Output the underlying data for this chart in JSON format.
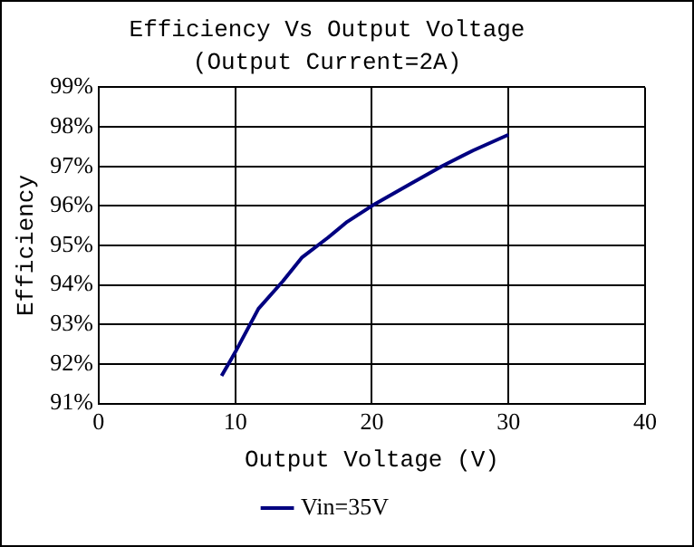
{
  "chart_data": {
    "type": "line",
    "title": "Efficiency Vs Output Voltage",
    "subtitle": "(Output Current=2A)",
    "xlabel": "Output Voltage (V)",
    "ylabel": "Efficiency",
    "series": [
      {
        "name": "Vin=35V",
        "color": "#000080",
        "x": [
          9.0,
          10.0,
          11.7,
          13.5,
          14.9,
          16.8,
          18.2,
          20.0,
          22.8,
          25.1,
          27.4,
          30.0
        ],
        "values": [
          91.7,
          92.3,
          93.4,
          94.1,
          94.7,
          95.2,
          95.6,
          96.0,
          96.55,
          97.0,
          97.4,
          97.8
        ]
      }
    ],
    "xlim": [
      0,
      40
    ],
    "xticks": [
      0,
      10,
      20,
      30,
      40
    ],
    "ylim": [
      91,
      99
    ],
    "yticks": [
      {
        "value": 91,
        "label": "91%"
      },
      {
        "value": 92,
        "label": "92%"
      },
      {
        "value": 93,
        "label": "93%"
      },
      {
        "value": 94,
        "label": "94%"
      },
      {
        "value": 95,
        "label": "95%"
      },
      {
        "value": 96,
        "label": "96%"
      },
      {
        "value": 97,
        "label": "97%"
      },
      {
        "value": 98,
        "label": "98%"
      },
      {
        "value": 99,
        "label": "99%"
      }
    ],
    "grid": true,
    "legend": "bottom",
    "marker": "none",
    "line_style": "solid"
  }
}
